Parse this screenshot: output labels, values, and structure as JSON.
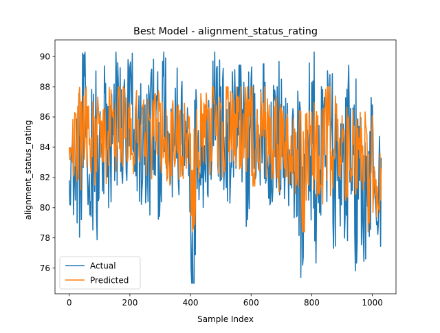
{
  "chart_data": {
    "type": "line",
    "title": "Best Model - alignment_status_rating",
    "xlabel": "Sample Index",
    "ylabel": "alignment_status_rating",
    "xlim": [
      -47,
      1078
    ],
    "ylim": [
      74.3,
      91.1
    ],
    "x_ticks": [
      0,
      200,
      400,
      600,
      800,
      1000
    ],
    "y_ticks": [
      76,
      78,
      80,
      82,
      84,
      86,
      88,
      90
    ],
    "grid": false,
    "legend_placement": "lower-left",
    "n_samples": 1030,
    "series": [
      {
        "name": "Actual",
        "color": "#1f77b4",
        "x": [
          0,
          10,
          20,
          30,
          40,
          50,
          60,
          70,
          80,
          90,
          100,
          110,
          120,
          130,
          140,
          150,
          160,
          170,
          180,
          190,
          200,
          210,
          220,
          230,
          240,
          250,
          260,
          270,
          280,
          290,
          300,
          310,
          320,
          330,
          340,
          350,
          360,
          370,
          380,
          390,
          400,
          410,
          420,
          430,
          440,
          450,
          460,
          470,
          480,
          490,
          500,
          510,
          520,
          530,
          540,
          550,
          560,
          570,
          580,
          590,
          600,
          610,
          620,
          630,
          640,
          650,
          660,
          670,
          680,
          690,
          700,
          710,
          720,
          730,
          740,
          750,
          760,
          770,
          780,
          790,
          800,
          810,
          820,
          830,
          840,
          850,
          860,
          870,
          880,
          890,
          900,
          910,
          920,
          930,
          940,
          950,
          960,
          970,
          980,
          990,
          1000,
          1010,
          1020,
          1029
        ],
        "values": [
          81.8,
          84.2,
          80.5,
          86.0,
          79.2,
          88.7,
          82.2,
          80.4,
          87.5,
          79.6,
          84.9,
          81.1,
          88.2,
          80.0,
          87.5,
          81.8,
          89.6,
          82.4,
          87.8,
          81.8,
          89.3,
          83.9,
          82.1,
          87.4,
          81.2,
          86.8,
          80.4,
          88.9,
          82.2,
          87.1,
          81.1,
          88.7,
          82.6,
          84.9,
          80.7,
          87.9,
          81.6,
          87.8,
          82.8,
          86.6,
          80.4,
          75.0,
          87.0,
          82.3,
          85.2,
          81.7,
          87.1,
          83.1,
          90.3,
          82.8,
          88.0,
          81.2,
          86.5,
          80.3,
          87.4,
          82.6,
          89.4,
          81.7,
          86.9,
          80.6,
          88.6,
          82.6,
          86.5,
          81.5,
          89.5,
          81.9,
          85.6,
          80.4,
          87.3,
          81.7,
          88.5,
          80.6,
          86.9,
          81.5,
          85.9,
          79.4,
          87.0,
          76.2,
          84.8,
          80.5,
          88.3,
          77.8,
          85.2,
          79.5,
          86.6,
          80.4,
          88.8,
          79.0,
          86.9,
          80.6,
          85.7,
          79.3,
          88.0,
          80.9,
          86.8,
          77.7,
          84.4,
          78.3,
          83.4,
          78.1,
          86.8,
          80.5,
          79.1,
          83.3
        ]
      },
      {
        "name": "Predicted",
        "color": "#ff7f0e",
        "x": [
          0,
          10,
          20,
          30,
          40,
          50,
          60,
          70,
          80,
          90,
          100,
          110,
          120,
          130,
          140,
          150,
          160,
          170,
          180,
          190,
          200,
          210,
          220,
          230,
          240,
          250,
          260,
          270,
          280,
          290,
          300,
          310,
          320,
          330,
          340,
          350,
          360,
          370,
          380,
          390,
          400,
          410,
          420,
          430,
          440,
          450,
          460,
          470,
          480,
          490,
          500,
          510,
          520,
          530,
          540,
          550,
          560,
          570,
          580,
          590,
          600,
          610,
          620,
          630,
          640,
          650,
          660,
          670,
          680,
          690,
          700,
          710,
          720,
          730,
          740,
          750,
          760,
          770,
          780,
          790,
          800,
          810,
          820,
          830,
          840,
          850,
          860,
          870,
          880,
          890,
          900,
          910,
          920,
          930,
          940,
          950,
          960,
          970,
          980,
          990,
          1000,
          1010,
          1020,
          1029
        ],
        "values": [
          84.0,
          83.0,
          86.2,
          81.9,
          87.0,
          83.2,
          86.7,
          82.9,
          85.8,
          82.4,
          86.2,
          83.0,
          85.4,
          82.8,
          86.8,
          83.4,
          87.2,
          83.0,
          87.5,
          83.3,
          86.9,
          83.6,
          86.9,
          83.4,
          86.5,
          83.4,
          87.2,
          83.2,
          86.8,
          83.6,
          86.9,
          83.3,
          86.5,
          82.6,
          86.7,
          83.1,
          86.8,
          83.0,
          86.9,
          83.3,
          84.9,
          78.6,
          86.5,
          83.1,
          86.2,
          82.9,
          86.6,
          83.1,
          87.1,
          83.4,
          86.9,
          83.2,
          87.2,
          83.0,
          86.6,
          82.8,
          87.3,
          83.4,
          86.8,
          83.3,
          87.1,
          82.3,
          86.5,
          83.2,
          86.9,
          82.0,
          86.8,
          82.5,
          86.5,
          81.9,
          86.6,
          82.6,
          86.2,
          82.4,
          85.9,
          81.5,
          86.4,
          78.4,
          86.2,
          81.5,
          86.3,
          81.9,
          86.1,
          81.5,
          86.6,
          81.8,
          88.0,
          81.3,
          86.3,
          82.1,
          86.1,
          81.1,
          85.9,
          81.7,
          85.4,
          81.3,
          86.3,
          81.2,
          85.2,
          79.0,
          86.1,
          80.8,
          79.9,
          82.6
        ]
      }
    ]
  }
}
